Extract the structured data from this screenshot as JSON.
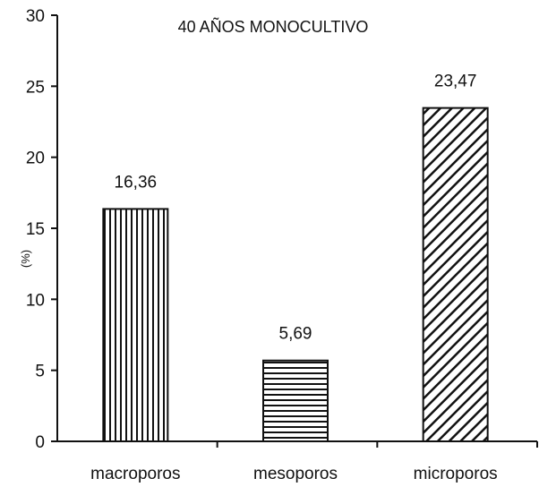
{
  "chart_data": {
    "type": "bar",
    "title": "40 AÑOS MONOCULTIVO",
    "ylabel": "(%)",
    "xlabel": "",
    "ylim": [
      0,
      30
    ],
    "yticks": [
      0,
      5,
      10,
      15,
      20,
      25,
      30
    ],
    "categories": [
      "macroporos",
      "mesoporos",
      "microporos"
    ],
    "values": [
      16.36,
      5.69,
      23.47
    ],
    "value_labels": [
      "16,36",
      "5,69",
      "23,47"
    ],
    "patterns": [
      "vertical",
      "horizontal",
      "diagonal"
    ],
    "grid": false,
    "legend": "none"
  }
}
